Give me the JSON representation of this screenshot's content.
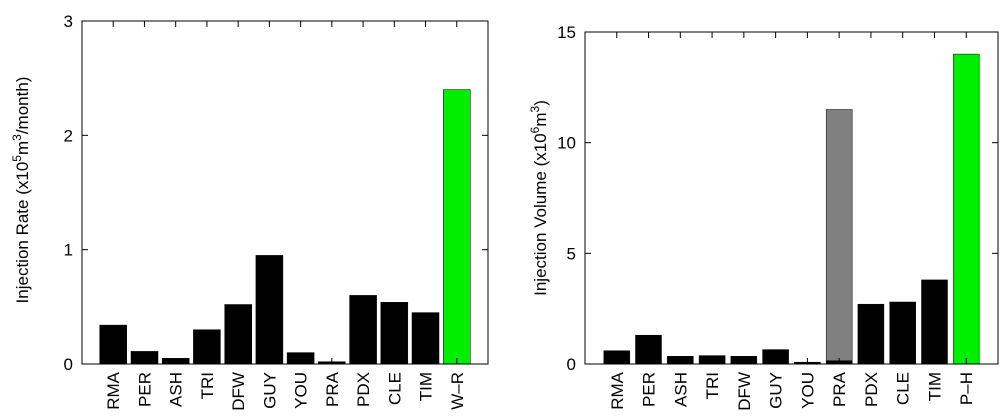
{
  "chart_data": [
    {
      "type": "bar",
      "categories": [
        "RMA",
        "PER",
        "ASH",
        "TRI",
        "DFW",
        "GUY",
        "YOU",
        "PRA",
        "PDX",
        "CLE",
        "TIM",
        "W–R"
      ],
      "values": [
        0.34,
        0.11,
        0.05,
        0.3,
        0.52,
        0.95,
        0.1,
        0.02,
        0.6,
        0.54,
        0.45,
        2.4
      ],
      "colors": [
        "#000000",
        "#000000",
        "#000000",
        "#000000",
        "#000000",
        "#000000",
        "#000000",
        "#000000",
        "#000000",
        "#000000",
        "#000000",
        "#00ee00"
      ],
      "ylabel_parts": [
        "Injection Rate (x10",
        "5",
        "m",
        "3",
        "/month)"
      ],
      "ylim": [
        0,
        3
      ],
      "yticks": [
        "0",
        "1",
        "2",
        "3"
      ],
      "grid": false
    },
    {
      "type": "bar",
      "categories": [
        "RMA",
        "PER",
        "ASH",
        "TRI",
        "DFW",
        "GUY",
        "YOU",
        "PRA",
        "PDX",
        "CLE",
        "TIM",
        "P–H"
      ],
      "values": [
        0.6,
        1.3,
        0.35,
        0.38,
        0.35,
        0.65,
        0.08,
        0.15,
        2.7,
        2.8,
        3.8,
        14.0
      ],
      "colors": [
        "#000000",
        "#000000",
        "#000000",
        "#000000",
        "#000000",
        "#000000",
        "#000000",
        "#000000",
        "#000000",
        "#000000",
        "#000000",
        "#00ee00"
      ],
      "overlay_bar": {
        "category": "PRA",
        "value": 11.5,
        "color": "#808080"
      },
      "ylabel_parts": [
        "Injection Volume (x10",
        "6",
        "m",
        "3",
        ")"
      ],
      "ylim": [
        0,
        15
      ],
      "yticks": [
        "0",
        "5",
        "10",
        "15"
      ],
      "grid": false
    }
  ]
}
